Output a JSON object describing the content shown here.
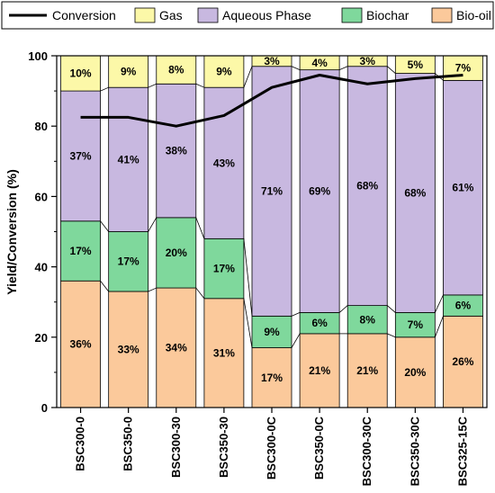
{
  "chart_data": {
    "type": "bar",
    "stacked": true,
    "xlabel": "",
    "ylabel": "Yield/Conversion (%)",
    "ylim": [
      0,
      100
    ],
    "yticks": [
      0,
      20,
      40,
      60,
      80,
      100
    ],
    "grid": false,
    "legend_position": "top",
    "categories": [
      "BSC300-0",
      "BSC350-0",
      "BSC300-30",
      "BSC350-30",
      "BSC300-0C",
      "BSC350-0C",
      "BSC300-30C",
      "BSC350-30C",
      "BSC325-15C"
    ],
    "series": [
      {
        "name": "Bio-oil",
        "color": "#fbc99b",
        "values": [
          36,
          33,
          34,
          31,
          17,
          21,
          21,
          20,
          26
        ],
        "labels": [
          "36%",
          "33%",
          "34%",
          "31%",
          "17%",
          "21%",
          "21%",
          "20%",
          "26%"
        ]
      },
      {
        "name": "Biochar",
        "color": "#7fd89c",
        "values": [
          17,
          17,
          20,
          17,
          9,
          6,
          8,
          7,
          6
        ],
        "labels": [
          "17%",
          "17%",
          "20%",
          "17%",
          "9%",
          "6%",
          "8%",
          "7%",
          "6%"
        ]
      },
      {
        "name": "Aqueous Phase",
        "color": "#c8b8e0",
        "values": [
          37,
          41,
          38,
          43,
          71,
          69,
          68,
          68,
          61
        ],
        "labels": [
          "37%",
          "41%",
          "38%",
          "43%",
          "71%",
          "69%",
          "68%",
          "68%",
          "61%"
        ]
      },
      {
        "name": "Gas",
        "color": "#fcf8a8",
        "values": [
          10,
          9,
          8,
          9,
          3,
          4,
          3,
          5,
          7
        ],
        "labels": [
          "10%",
          "9%",
          "8%",
          "9%",
          "3%",
          "4%",
          "3%",
          "5%",
          "7%"
        ]
      }
    ],
    "line": {
      "name": "Conversion",
      "color": "#000000",
      "values": [
        82.5,
        82.5,
        80,
        83,
        91,
        94.5,
        92,
        93.5,
        94.5
      ]
    },
    "legend": [
      {
        "name": "Conversion",
        "kind": "line",
        "color": "#000000"
      },
      {
        "name": "Gas",
        "kind": "box",
        "color": "#fcf8a8"
      },
      {
        "name": "Aqueous Phase",
        "kind": "box",
        "color": "#c8b8e0"
      },
      {
        "name": "Biochar",
        "kind": "box",
        "color": "#7fd89c"
      },
      {
        "name": "Bio-oil",
        "kind": "box",
        "color": "#fbc99b"
      }
    ]
  }
}
